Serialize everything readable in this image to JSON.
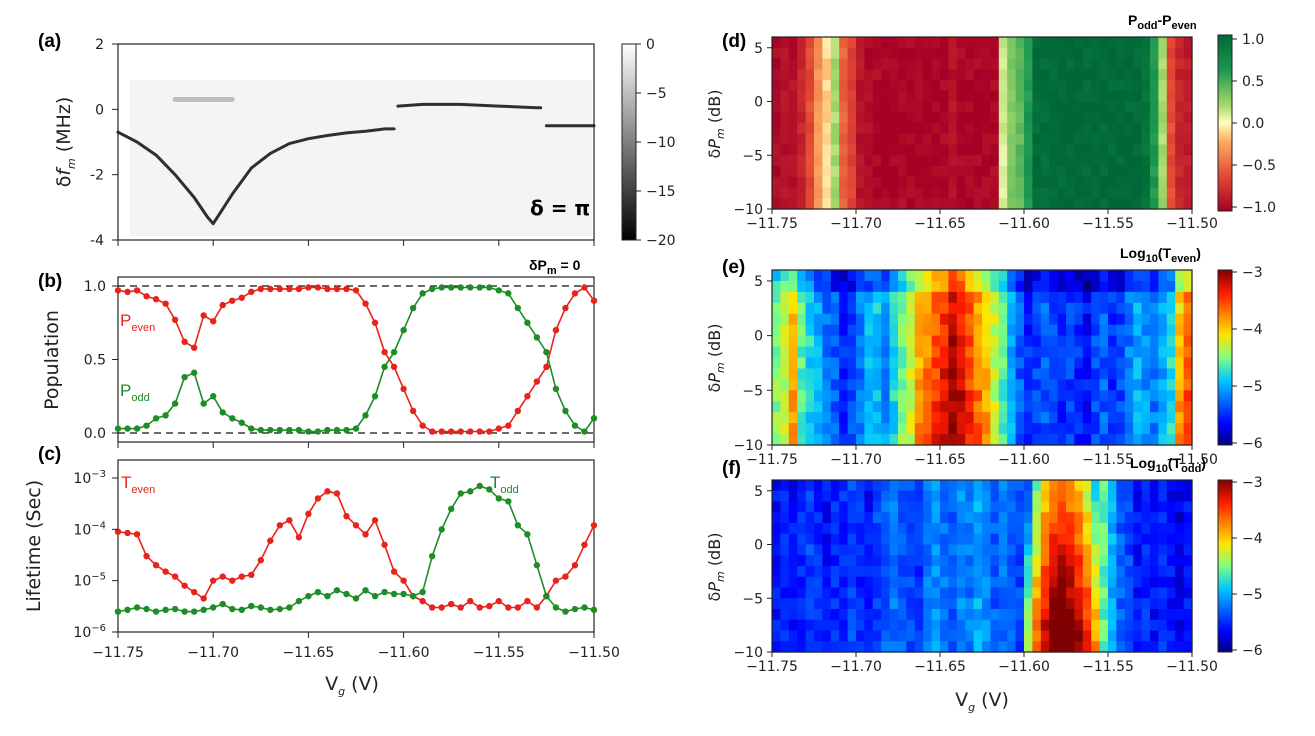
{
  "chart_data": [
    {
      "panel": "(a)",
      "type": "heatmap",
      "ylabel": "δf_m (MHz)",
      "ylim": [
        -4,
        2
      ],
      "yticks": [
        2,
        0,
        -2,
        -4
      ],
      "xlim": [
        -11.75,
        -11.5
      ],
      "annotation": "δ = π",
      "colorbar": {
        "ticks": [
          0,
          -5,
          -10,
          -15,
          -20
        ],
        "range": [
          -20,
          0
        ],
        "colormap": "gray"
      },
      "traces": [
        {
          "name": "resonance",
          "points": [
            [
              -11.75,
              -0.7
            ],
            [
              -11.74,
              -1.0
            ],
            [
              -11.73,
              -1.4
            ],
            [
              -11.72,
              -2.0
            ],
            [
              -11.71,
              -2.7
            ],
            [
              -11.703,
              -3.3
            ],
            [
              -11.7,
              -3.5
            ],
            [
              -11.69,
              -2.6
            ],
            [
              -11.68,
              -1.8
            ],
            [
              -11.67,
              -1.35
            ],
            [
              -11.66,
              -1.05
            ],
            [
              -11.65,
              -0.9
            ],
            [
              -11.64,
              -0.8
            ],
            [
              -11.63,
              -0.72
            ],
            [
              -11.62,
              -0.67
            ],
            [
              -11.61,
              -0.6
            ],
            [
              -11.605,
              -0.6
            ]
          ]
        },
        {
          "name": "upper-branch",
          "points": [
            [
              -11.603,
              0.1
            ],
            [
              -11.59,
              0.15
            ],
            [
              -11.57,
              0.15
            ],
            [
              -11.55,
              0.1
            ],
            [
              -11.53,
              0.05
            ],
            [
              -11.528,
              0.05
            ]
          ]
        },
        {
          "name": "step",
          "points": [
            [
              -11.525,
              -0.5
            ],
            [
              -11.51,
              -0.5
            ],
            [
              -11.5,
              -0.5
            ]
          ]
        },
        {
          "name": "faint-feature",
          "points": [
            [
              -11.72,
              0.3
            ],
            [
              -11.71,
              0.3
            ],
            [
              -11.7,
              0.3
            ],
            [
              -11.69,
              0.3
            ]
          ]
        }
      ]
    },
    {
      "panel": "(b)",
      "type": "line",
      "ylabel": "Population",
      "ylim": [
        0,
        1
      ],
      "yticks": [
        "0.0",
        "0.5",
        "1.0"
      ],
      "annotation": "δP_m = 0",
      "x": [
        -11.75,
        -11.745,
        -11.74,
        -11.735,
        -11.73,
        -11.725,
        -11.72,
        -11.715,
        -11.71,
        -11.705,
        -11.7,
        -11.695,
        -11.69,
        -11.685,
        -11.68,
        -11.675,
        -11.67,
        -11.665,
        -11.66,
        -11.655,
        -11.65,
        -11.645,
        -11.64,
        -11.635,
        -11.63,
        -11.625,
        -11.62,
        -11.615,
        -11.61,
        -11.605,
        -11.6,
        -11.595,
        -11.59,
        -11.585,
        -11.58,
        -11.575,
        -11.57,
        -11.565,
        -11.56,
        -11.555,
        -11.55,
        -11.545,
        -11.54,
        -11.535,
        -11.53,
        -11.525,
        -11.52,
        -11.515,
        -11.51,
        -11.505,
        -11.5
      ],
      "series": [
        {
          "name": "P_even",
          "color": "#e8231c",
          "values": [
            0.97,
            0.96,
            0.97,
            0.93,
            0.91,
            0.88,
            0.77,
            0.62,
            0.58,
            0.8,
            0.76,
            0.87,
            0.9,
            0.92,
            0.96,
            0.98,
            0.98,
            0.98,
            0.98,
            0.98,
            0.99,
            0.99,
            0.98,
            0.98,
            0.98,
            0.97,
            0.88,
            0.75,
            0.55,
            0.45,
            0.3,
            0.15,
            0.05,
            0.01,
            0.01,
            0.01,
            0.01,
            0.01,
            0.01,
            0.01,
            0.03,
            0.05,
            0.15,
            0.25,
            0.35,
            0.45,
            0.7,
            0.85,
            0.95,
            0.99,
            0.9
          ]
        },
        {
          "name": "P_odd",
          "color": "#1e8c27",
          "values": [
            0.03,
            0.03,
            0.03,
            0.05,
            0.1,
            0.12,
            0.2,
            0.38,
            0.41,
            0.2,
            0.25,
            0.14,
            0.1,
            0.07,
            0.03,
            0.02,
            0.02,
            0.02,
            0.02,
            0.02,
            0.01,
            0.01,
            0.02,
            0.02,
            0.02,
            0.03,
            0.12,
            0.25,
            0.45,
            0.55,
            0.7,
            0.85,
            0.95,
            0.98,
            0.99,
            0.99,
            0.99,
            0.99,
            0.99,
            0.99,
            0.97,
            0.95,
            0.85,
            0.75,
            0.65,
            0.55,
            0.3,
            0.15,
            0.05,
            0.01,
            0.1
          ]
        }
      ]
    },
    {
      "panel": "(c)",
      "type": "line",
      "ylabel": "Lifetime (Sec)",
      "yscale": "log",
      "ylim": [
        1e-06,
        0.001
      ],
      "yticks": [
        "10^-3",
        "10^-4",
        "10^-5",
        "10^-6"
      ],
      "xlabel": "V_g (V)",
      "xticks": [
        "−11.75",
        "−11.70",
        "−11.65",
        "−11.60",
        "−11.55",
        "−11.50"
      ],
      "x": [
        -11.75,
        -11.745,
        -11.74,
        -11.735,
        -11.73,
        -11.725,
        -11.72,
        -11.715,
        -11.71,
        -11.705,
        -11.7,
        -11.695,
        -11.69,
        -11.685,
        -11.68,
        -11.675,
        -11.67,
        -11.665,
        -11.66,
        -11.655,
        -11.65,
        -11.645,
        -11.64,
        -11.635,
        -11.63,
        -11.625,
        -11.62,
        -11.615,
        -11.61,
        -11.605,
        -11.6,
        -11.595,
        -11.59,
        -11.585,
        -11.58,
        -11.575,
        -11.57,
        -11.565,
        -11.56,
        -11.555,
        -11.55,
        -11.545,
        -11.54,
        -11.535,
        -11.53,
        -11.525,
        -11.52,
        -11.515,
        -11.51,
        -11.505,
        -11.5
      ],
      "series": [
        {
          "name": "T_even",
          "color": "#e8231c",
          "values": [
            9e-05,
            8.5e-05,
            8e-05,
            3e-05,
            2e-05,
            1.5e-05,
            1.2e-05,
            8e-06,
            6e-06,
            4.5e-06,
            1e-05,
            1.2e-05,
            1e-05,
            1.2e-05,
            1.3e-05,
            2.5e-05,
            6e-05,
            0.00012,
            0.00015,
            7e-05,
            0.0002,
            0.0004,
            0.00055,
            0.0005,
            0.00018,
            0.00012,
            8e-05,
            0.00015,
            5e-05,
            1.5e-05,
            1e-05,
            5e-06,
            4e-06,
            3e-06,
            3e-06,
            3.5e-06,
            3e-06,
            4e-06,
            3e-06,
            3.2e-06,
            4e-06,
            3e-06,
            3e-06,
            4e-06,
            3e-06,
            5e-06,
            1e-05,
            1.2e-05,
            2e-05,
            5e-05,
            0.00012
          ]
        },
        {
          "name": "T_odd",
          "color": "#1e8c27",
          "values": [
            2.5e-06,
            2.7e-06,
            3e-06,
            2.8e-06,
            2.5e-06,
            2.7e-06,
            2.8e-06,
            2.5e-06,
            2.5e-06,
            2.7e-06,
            3e-06,
            3.5e-06,
            2.8e-06,
            2.7e-06,
            3.2e-06,
            3e-06,
            2.7e-06,
            2.8e-06,
            3e-06,
            4e-06,
            5e-06,
            6e-06,
            5e-06,
            6.5e-06,
            5.5e-06,
            4.5e-06,
            6.5e-06,
            5e-06,
            6e-06,
            5.5e-06,
            5.5e-06,
            5e-06,
            6e-06,
            3e-05,
            0.0001,
            0.00025,
            0.0005,
            0.00055,
            0.0007,
            0.0006,
            0.0004,
            0.00035,
            0.00012,
            8e-05,
            2e-05,
            5e-06,
            3e-06,
            2.5e-06,
            2.8e-06,
            3e-06,
            2.7e-06
          ]
        }
      ]
    },
    {
      "panel": "(d)",
      "type": "heatmap",
      "title": "P_odd-P_even",
      "ylabel": "δP_m (dB)",
      "yticks": [
        5,
        0,
        -5,
        -10
      ],
      "ylim": [
        -10,
        6
      ],
      "xticks": [
        "−11.75",
        "−11.70",
        "−11.65",
        "−11.60",
        "−11.55",
        "−11.50"
      ],
      "xlim": [
        -11.75,
        -11.5
      ],
      "colorbar": {
        "ticks": [
          "1.0",
          "0.5",
          "0.0",
          "−0.5",
          "−1.0"
        ],
        "range": [
          -1,
          1
        ],
        "colormap": "RdYlGn"
      },
      "column_profile": [
        -0.95,
        -0.9,
        -0.92,
        -0.8,
        -0.6,
        -0.3,
        -0.1,
        0.2,
        -0.5,
        -0.65,
        -0.9,
        -0.95,
        -0.95,
        -0.98,
        -0.98,
        -0.95,
        -0.97,
        -0.99,
        -0.98,
        -0.98,
        -0.95,
        -0.9,
        -0.95,
        -0.97,
        -0.96,
        -0.95,
        -0.95,
        0.1,
        0.3,
        0.4,
        0.6,
        0.95,
        0.95,
        0.97,
        0.98,
        0.99,
        0.99,
        0.98,
        0.98,
        0.98,
        0.97,
        0.98,
        0.98,
        0.97,
        0.9,
        0.6,
        0.2,
        -0.6,
        -0.8,
        -0.85
      ]
    },
    {
      "panel": "(e)",
      "type": "heatmap",
      "title": "Log10(T_even)",
      "ylabel": "δP_m (dB)",
      "yticks": [
        5,
        0,
        -5,
        -10
      ],
      "ylim": [
        -10,
        6
      ],
      "xticks": [
        "−11.75",
        "−11.70",
        "−11.65",
        "−11.60",
        "−11.55",
        "−11.50"
      ],
      "xlim": [
        -11.75,
        -11.5
      ],
      "colorbar": {
        "ticks": [
          "−3",
          "−4",
          "−5",
          "−6"
        ],
        "range": [
          -6,
          -3
        ],
        "colormap": "jet"
      },
      "column_profile": [
        -4.5,
        -4.3,
        -4.0,
        -4.6,
        -4.8,
        -5.0,
        -5.2,
        -5.3,
        -5.5,
        -5.4,
        -5.2,
        -5.0,
        -4.9,
        -5.1,
        -4.8,
        -4.5,
        -4.3,
        -4.0,
        -3.8,
        -3.6,
        -3.4,
        -3.2,
        -3.3,
        -3.6,
        -3.8,
        -4.0,
        -4.3,
        -4.6,
        -5.0,
        -5.3,
        -5.5,
        -5.4,
        -5.3,
        -5.4,
        -5.5,
        -5.4,
        -5.5,
        -5.6,
        -5.4,
        -5.3,
        -5.5,
        -5.4,
        -5.2,
        -5.0,
        -5.1,
        -5.2,
        -5.0,
        -4.8,
        -4.0,
        -3.7
      ]
    },
    {
      "panel": "(f)",
      "type": "heatmap",
      "title": "Log10(T_odd)",
      "ylabel": "δP_m (dB)",
      "xlabel": "V_g (V)",
      "yticks": [
        5,
        0,
        -5,
        -10
      ],
      "ylim": [
        -10,
        6
      ],
      "xticks": [
        "−11.75",
        "−11.70",
        "−11.65",
        "−11.60",
        "−11.55",
        "−11.50"
      ],
      "xlim": [
        -11.75,
        -11.5
      ],
      "colorbar": {
        "ticks": [
          "−3",
          "−4",
          "−5",
          "−6"
        ],
        "range": [
          -6,
          -3
        ],
        "colormap": "jet"
      },
      "column_profile": [
        -5.6,
        -5.5,
        -5.6,
        -5.5,
        -5.4,
        -5.5,
        -5.6,
        -5.5,
        -5.5,
        -5.4,
        -5.5,
        -5.6,
        -5.4,
        -5.3,
        -5.2,
        -5.3,
        -5.4,
        -5.5,
        -5.2,
        -5.1,
        -5.2,
        -5.3,
        -5.1,
        -5.2,
        -5.0,
        -5.1,
        -5.3,
        -5.2,
        -5.3,
        -5.4,
        -4.5,
        -3.8,
        -3.3,
        -3.0,
        -2.9,
        -3.0,
        -3.2,
        -3.5,
        -4.0,
        -4.6,
        -5.0,
        -5.3,
        -5.4,
        -5.6,
        -5.5,
        -5.6,
        -5.5,
        -5.6,
        -5.7,
        -5.6
      ]
    }
  ]
}
